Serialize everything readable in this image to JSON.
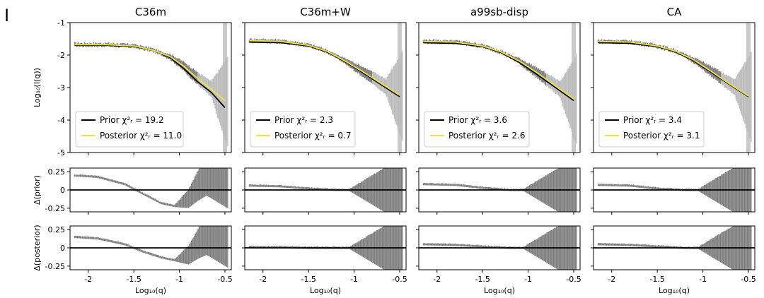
{
  "figure_letter": "I",
  "colors": {
    "prior": "#000000",
    "posterior": "#f0e442",
    "data": "#7f7f7f",
    "data_light": "#bdbdbd"
  },
  "chart_data": {
    "type": "line",
    "panels": [
      {
        "title": "C36m",
        "prior": [
          [
            -2.15,
            -1.7
          ],
          [
            -1.8,
            -1.7
          ],
          [
            -1.5,
            -1.74
          ],
          [
            -1.3,
            -1.84
          ],
          [
            -1.1,
            -2.08
          ],
          [
            -0.95,
            -2.42
          ],
          [
            -0.8,
            -2.82
          ],
          [
            -0.65,
            -3.15
          ],
          [
            -0.5,
            -3.62
          ]
        ],
        "posterior": [
          [
            -2.15,
            -1.68
          ],
          [
            -1.8,
            -1.68
          ],
          [
            -1.5,
            -1.72
          ],
          [
            -1.3,
            -1.84
          ],
          [
            -1.1,
            -2.05
          ],
          [
            -0.95,
            -2.35
          ],
          [
            -0.8,
            -2.72
          ],
          [
            -0.65,
            -3.05
          ],
          [
            -0.5,
            -3.4
          ]
        ],
        "legend": [
          {
            "label": "Prior χ²ᵣ = 19.2",
            "color": "#000000"
          },
          {
            "label": "Posterior χ²ᵣ = 11.0",
            "color": "#f0e442"
          }
        ],
        "resid_prior": [
          [
            -2.15,
            0.2
          ],
          [
            -1.9,
            0.18
          ],
          [
            -1.6,
            0.08
          ],
          [
            -1.4,
            -0.05
          ],
          [
            -1.2,
            -0.18
          ],
          [
            -1.05,
            -0.22
          ],
          [
            -0.9,
            -0.12
          ],
          [
            -0.8,
            0.05
          ],
          [
            -0.7,
            0.2
          ]
        ],
        "resid_post": [
          [
            -2.15,
            0.15
          ],
          [
            -1.9,
            0.13
          ],
          [
            -1.6,
            0.05
          ],
          [
            -1.4,
            -0.05
          ],
          [
            -1.2,
            -0.13
          ],
          [
            -1.05,
            -0.17
          ],
          [
            -0.9,
            -0.1
          ],
          [
            -0.8,
            0.05
          ],
          [
            -0.7,
            0.18
          ]
        ]
      },
      {
        "title": "C36m+W",
        "prior": [
          [
            -2.15,
            -1.6
          ],
          [
            -1.8,
            -1.62
          ],
          [
            -1.5,
            -1.72
          ],
          [
            -1.3,
            -1.9
          ],
          [
            -1.1,
            -2.2
          ],
          [
            -0.9,
            -2.55
          ],
          [
            -0.7,
            -2.92
          ],
          [
            -0.5,
            -3.28
          ]
        ],
        "posterior": [
          [
            -2.15,
            -1.55
          ],
          [
            -1.8,
            -1.58
          ],
          [
            -1.5,
            -1.7
          ],
          [
            -1.3,
            -1.88
          ],
          [
            -1.1,
            -2.18
          ],
          [
            -0.9,
            -2.52
          ],
          [
            -0.7,
            -2.88
          ],
          [
            -0.5,
            -3.24
          ]
        ],
        "legend": [
          {
            "label": "Prior χ²ᵣ = 2.3",
            "color": "#000000"
          },
          {
            "label": "Posterior χ²ᵣ = 0.7",
            "color": "#f0e442"
          }
        ],
        "resid_prior": [
          [
            -2.15,
            0.06
          ],
          [
            -1.8,
            0.05
          ],
          [
            -1.5,
            0.02
          ],
          [
            -1.2,
            0
          ],
          [
            -0.9,
            0
          ],
          [
            -0.7,
            0
          ]
        ],
        "resid_post": [
          [
            -2.15,
            0.01
          ],
          [
            -1.8,
            0.01
          ],
          [
            -1.5,
            0
          ],
          [
            -1.2,
            0
          ],
          [
            -0.9,
            0
          ],
          [
            -0.7,
            0
          ]
        ]
      },
      {
        "title": "a99sb-disp",
        "prior": [
          [
            -2.15,
            -1.62
          ],
          [
            -1.8,
            -1.64
          ],
          [
            -1.5,
            -1.74
          ],
          [
            -1.3,
            -1.92
          ],
          [
            -1.1,
            -2.22
          ],
          [
            -0.9,
            -2.6
          ],
          [
            -0.7,
            -3.0
          ],
          [
            -0.5,
            -3.4
          ]
        ],
        "posterior": [
          [
            -2.15,
            -1.58
          ],
          [
            -1.8,
            -1.6
          ],
          [
            -1.5,
            -1.72
          ],
          [
            -1.3,
            -1.9
          ],
          [
            -1.1,
            -2.18
          ],
          [
            -0.9,
            -2.55
          ],
          [
            -0.7,
            -2.95
          ],
          [
            -0.5,
            -3.35
          ]
        ],
        "legend": [
          {
            "label": "Prior χ²ᵣ = 3.6",
            "color": "#000000"
          },
          {
            "label": "Posterior χ²ᵣ = 2.6",
            "color": "#f0e442"
          }
        ],
        "resid_prior": [
          [
            -2.15,
            0.08
          ],
          [
            -1.8,
            0.07
          ],
          [
            -1.5,
            0.03
          ],
          [
            -1.2,
            0
          ],
          [
            -0.9,
            0
          ],
          [
            -0.7,
            0
          ]
        ],
        "resid_post": [
          [
            -2.15,
            0.05
          ],
          [
            -1.8,
            0.04
          ],
          [
            -1.5,
            0.02
          ],
          [
            -1.2,
            0
          ],
          [
            -0.9,
            0
          ],
          [
            -0.7,
            0
          ]
        ]
      },
      {
        "title": "CA",
        "prior": [
          [
            -2.15,
            -1.62
          ],
          [
            -1.8,
            -1.64
          ],
          [
            -1.5,
            -1.74
          ],
          [
            -1.3,
            -1.9
          ],
          [
            -1.1,
            -2.18
          ],
          [
            -0.9,
            -2.55
          ],
          [
            -0.7,
            -2.92
          ],
          [
            -0.5,
            -3.28
          ]
        ],
        "posterior": [
          [
            -2.15,
            -1.58
          ],
          [
            -1.8,
            -1.6
          ],
          [
            -1.5,
            -1.72
          ],
          [
            -1.3,
            -1.88
          ],
          [
            -1.1,
            -2.15
          ],
          [
            -0.9,
            -2.52
          ],
          [
            -0.7,
            -2.9
          ],
          [
            -0.5,
            -3.26
          ]
        ],
        "legend": [
          {
            "label": "Prior χ²ᵣ = 3.4",
            "color": "#000000"
          },
          {
            "label": "Posterior χ²ᵣ = 3.1",
            "color": "#f0e442"
          }
        ],
        "resid_prior": [
          [
            -2.15,
            0.07
          ],
          [
            -1.8,
            0.06
          ],
          [
            -1.5,
            0.02
          ],
          [
            -1.2,
            0
          ],
          [
            -0.9,
            0
          ],
          [
            -0.7,
            0
          ]
        ],
        "resid_post": [
          [
            -2.15,
            0.05
          ],
          [
            -1.8,
            0.04
          ],
          [
            -1.5,
            0.02
          ],
          [
            -1.2,
            0
          ],
          [
            -0.9,
            0
          ],
          [
            -0.7,
            0
          ]
        ]
      }
    ],
    "main_ylim": [
      -5,
      -1
    ],
    "main_yticks": [
      "-1",
      "-2",
      "-3",
      "-4",
      "-5"
    ],
    "main_ylabel": "Log₁₀(I(q))",
    "resid_ylim": [
      -0.3,
      0.3
    ],
    "resid_yticks": [
      "0.25",
      "0",
      "-0.25"
    ],
    "resid_prior_ylabel": "Δ(prior)",
    "resid_post_ylabel": "Δ(posterior)",
    "xlim": [
      -2.2,
      -0.43
    ],
    "xticks": [
      "-2",
      "-1.5",
      "-1",
      "-0.5"
    ],
    "xlabel": "Log₁₀(q)",
    "grid": false,
    "legend_position": "lower-left"
  }
}
